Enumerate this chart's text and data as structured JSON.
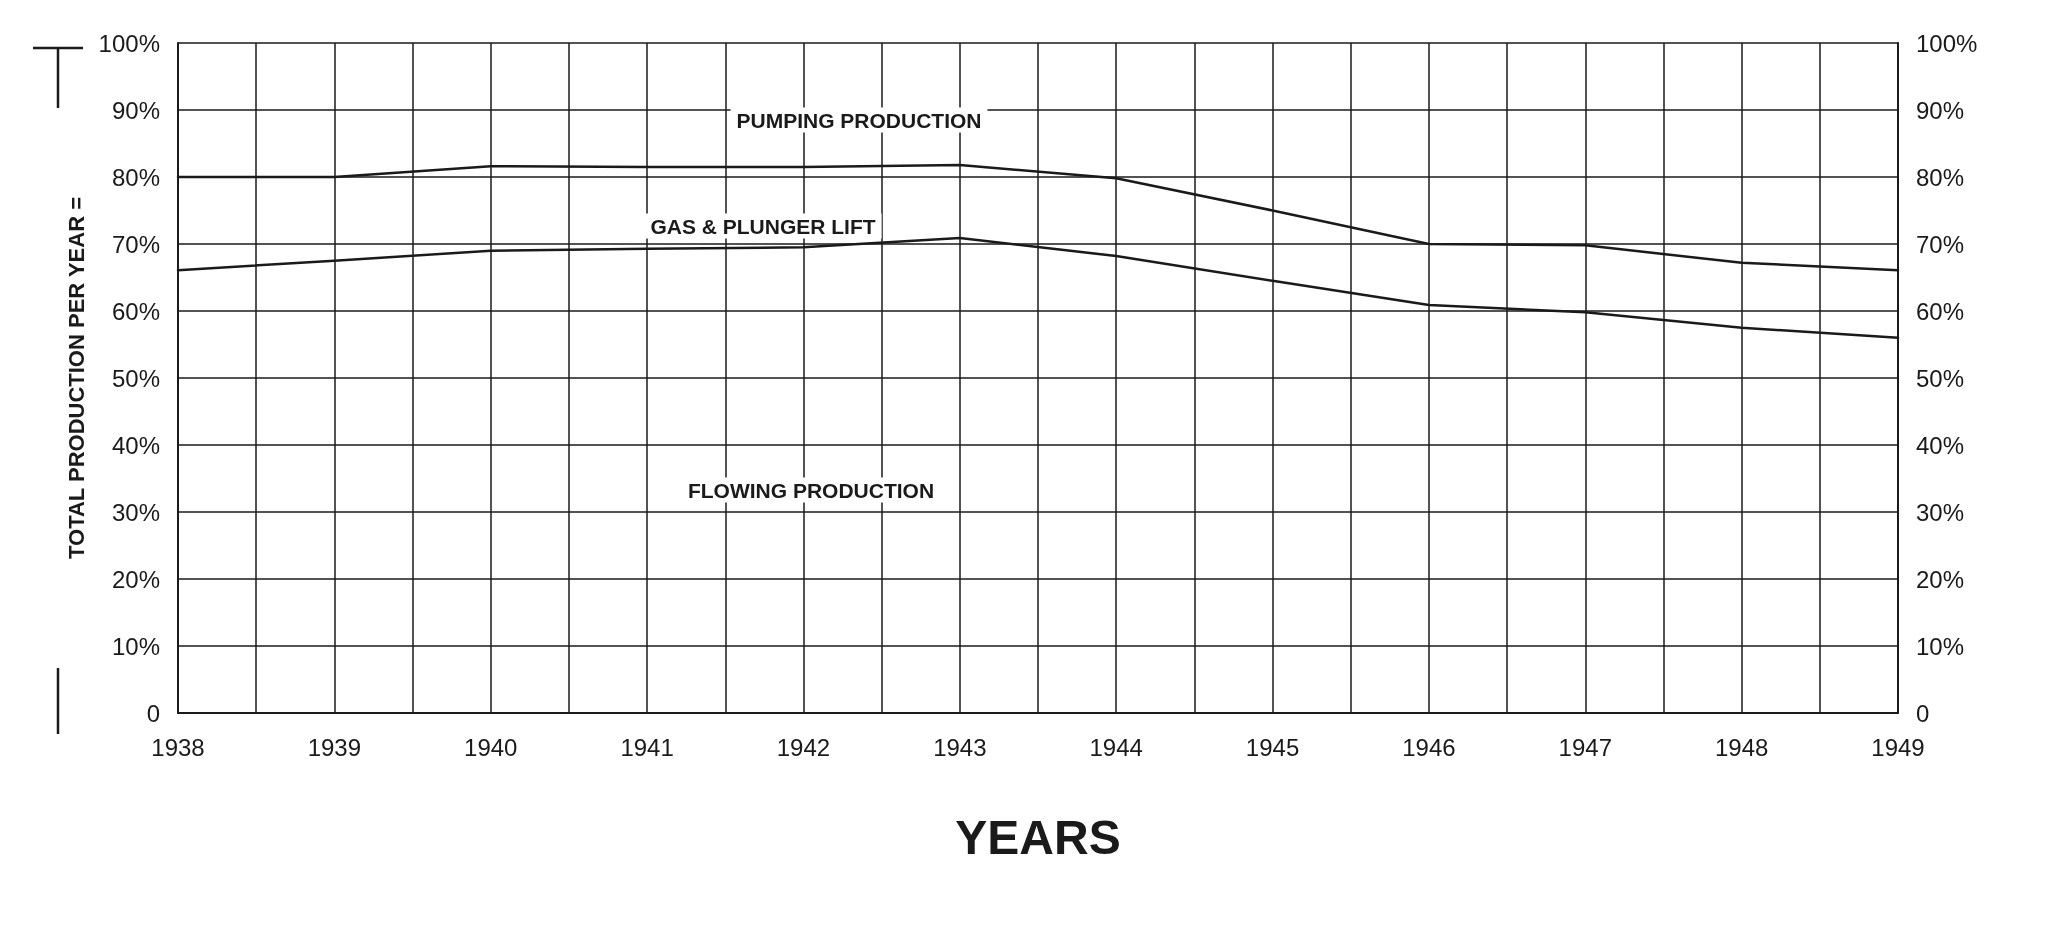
{
  "chart_data": {
    "type": "line",
    "xlabel": "YEARS",
    "ylabel": "TOTAL PRODUCTION PER YEAR =",
    "x": [
      1938,
      1939,
      1940,
      1941,
      1942,
      1943,
      1944,
      1945,
      1946,
      1947,
      1948,
      1949
    ],
    "series": [
      {
        "color": "#1a1a1a",
        "values": [
          80,
          80,
          81.6,
          81.5,
          81.5,
          81.8,
          79.8,
          75,
          70,
          69.8,
          67.2,
          66.1
        ]
      },
      {
        "color": "#1a1a1a",
        "values": [
          66.1,
          67.5,
          69,
          69.3,
          69.5,
          70.9,
          68.2,
          64.5,
          60.9,
          59.8,
          57.5,
          56
        ]
      }
    ],
    "xlim": [
      1938,
      1949
    ],
    "xticks": [
      1938,
      1939,
      1940,
      1941,
      1942,
      1943,
      1944,
      1945,
      1946,
      1947,
      1948,
      1949
    ],
    "ylim": [
      0,
      100
    ],
    "yticks": [
      0,
      {
        "value": 10,
        "label": "10%"
      },
      {
        "value": 20,
        "label": "20%"
      },
      {
        "value": 30,
        "label": "30%"
      },
      {
        "value": 40,
        "label": "40%"
      },
      {
        "value": 50,
        "label": "50%"
      },
      {
        "value": 60,
        "label": "60%"
      },
      {
        "value": 70,
        "label": "70%"
      },
      {
        "value": 80,
        "label": "80%"
      },
      {
        "value": 90,
        "label": "90%"
      },
      {
        "value": 100,
        "label": "100%"
      }
    ],
    "y2lim": [
      0,
      100
    ],
    "y2ticks": [
      0,
      {
        "value": 10,
        "label": "10%"
      },
      {
        "value": 20,
        "label": "20%"
      },
      {
        "value": 30,
        "label": "30%"
      },
      {
        "value": 40,
        "label": "40%"
      },
      {
        "value": 50,
        "label": "50%"
      },
      {
        "value": 60,
        "label": "60%"
      },
      {
        "value": 70,
        "label": "70%"
      },
      {
        "value": 80,
        "label": "80%"
      },
      {
        "value": 90,
        "label": "90%"
      },
      {
        "value": 100,
        "label": "100%"
      }
    ],
    "annotations": [
      "PUMPING PRODUCTION",
      "GAS & PLUNGER LIFT",
      "FLOWING PRODUCTION"
    ],
    "grid": true,
    "marker": "none",
    "line_style": "solid"
  }
}
